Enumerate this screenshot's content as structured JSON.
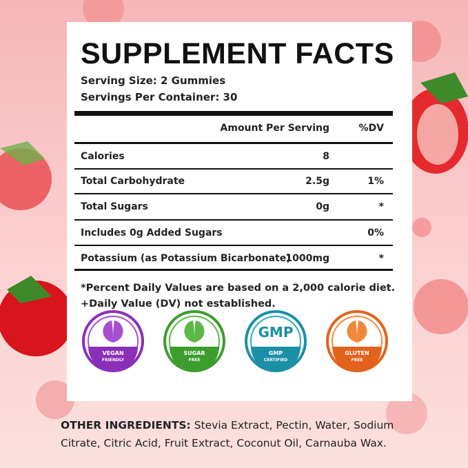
{
  "title": "SUPPLEMENT FACTS",
  "serving_size": "Serving Size: 2 Gummies",
  "servings_per_container": "Servings Per Container: 30",
  "table": {
    "header": {
      "amount": "Amount Per Serving",
      "dv": "%DV"
    },
    "rows": [
      {
        "name": "Calories",
        "amount": "8"
      },
      {
        "name": "Total Carbohydrate",
        "amount": "2.5g",
        "dv": "1%"
      },
      {
        "name": "Total Sugars",
        "amount": "0g",
        "dv": "*"
      },
      {
        "name": "Includes 0g Added Sugars",
        "dv": "0%"
      },
      {
        "name": "Potassium (as Potassium Bicarbonate)",
        "amount": "1000mg",
        "dv": "*"
      }
    ]
  },
  "footnotes": [
    "*Percent Daily Values are based on a 2,000 calorie diet.",
    "+Daily Value (DV) not established."
  ],
  "badges": [
    {
      "line1": "VEGAN",
      "line2": "FRIENDLY"
    },
    {
      "line1": "SUGAR",
      "line2": "FREE"
    },
    {
      "icon_text": "GMP",
      "line1": "GMP",
      "line2": "CERTIFIED"
    },
    {
      "line1": "GLUTEN",
      "line2": "FREE"
    }
  ],
  "other_ingredients": {
    "label": "OTHER INGREDIENTS:",
    "text": "Stevia Extract, Pectin, Water, Sodium Citrate, Citric Acid, Fruit Extract, Coconut Oil, Carnauba Wax."
  }
}
